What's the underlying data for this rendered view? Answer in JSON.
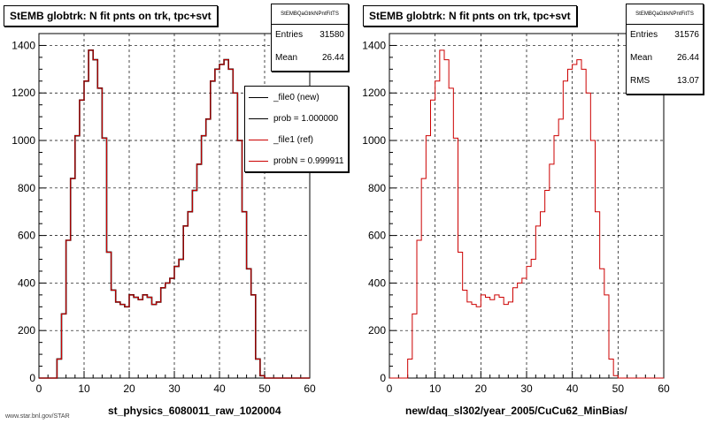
{
  "chart_data": [
    {
      "type": "histogram",
      "title": "StEMB globtrk: N fit pnts on trk, tpc+svt",
      "xlabel": "st_physics_6080011_raw_1020004",
      "ylabel": "",
      "xlim": [
        0,
        60
      ],
      "ylim": [
        0,
        1450
      ],
      "xticks": [
        "0",
        "10",
        "20",
        "30",
        "40",
        "50",
        "60"
      ],
      "yticks": [
        "0",
        "200",
        "400",
        "600",
        "800",
        "1000",
        "1200",
        "1400"
      ],
      "grid": true,
      "stats": {
        "header": "StEMBQaGtrkNPntFitTS",
        "rows": [
          {
            "label": "Entries",
            "value": "31580"
          },
          {
            "label": "Mean",
            "value": "26.44"
          }
        ]
      },
      "legend": {
        "placement": "top-right",
        "entries": [
          {
            "label": "_file0 (new)",
            "color": "#000000"
          },
          {
            "label": "prob = 1.000000",
            "color": "#000000"
          },
          {
            "label": "_file1 (ref)",
            "color": "#cc0000"
          },
          {
            "label": "probN = 0.999911",
            "color": "#cc0000"
          }
        ]
      },
      "bins": {
        "start": 0,
        "width": 1
      },
      "series": [
        {
          "name": "_file0 (new)",
          "color": "#000000",
          "values": [
            0,
            0,
            0,
            0,
            80,
            270,
            580,
            840,
            1020,
            1170,
            1250,
            1380,
            1340,
            1220,
            1010,
            530,
            370,
            320,
            310,
            300,
            350,
            340,
            330,
            350,
            340,
            310,
            320,
            380,
            400,
            420,
            470,
            500,
            640,
            700,
            790,
            900,
            1020,
            1090,
            1250,
            1300,
            1320,
            1340,
            1300,
            1200,
            1000,
            700,
            460,
            350,
            80,
            10,
            0,
            0,
            0,
            0,
            0,
            0,
            0,
            0,
            0,
            0
          ]
        },
        {
          "name": "_file1 (ref)",
          "color": "#cc0000",
          "values": [
            0,
            0,
            0,
            0,
            80,
            270,
            580,
            840,
            1020,
            1170,
            1250,
            1380,
            1340,
            1220,
            1010,
            530,
            370,
            320,
            310,
            300,
            350,
            340,
            330,
            350,
            340,
            310,
            320,
            380,
            400,
            420,
            470,
            500,
            640,
            700,
            790,
            900,
            1020,
            1090,
            1250,
            1300,
            1320,
            1340,
            1300,
            1200,
            1000,
            700,
            460,
            350,
            80,
            10,
            0,
            0,
            0,
            0,
            0,
            0,
            0,
            0,
            0,
            0
          ]
        }
      ]
    },
    {
      "type": "histogram",
      "title": "StEMB globtrk: N fit pnts on trk, tpc+svt",
      "xlabel": "new/daq_sl302/year_2005/CuCu62_MinBias/",
      "ylabel": "",
      "xlim": [
        0,
        60
      ],
      "ylim": [
        0,
        1450
      ],
      "xticks": [
        "0",
        "10",
        "20",
        "30",
        "40",
        "50",
        "60"
      ],
      "yticks": [
        "0",
        "200",
        "400",
        "600",
        "800",
        "1000",
        "1200",
        "1400"
      ],
      "grid": true,
      "stats": {
        "header": "StEMBQaGtrkNPntFitTS",
        "rows": [
          {
            "label": "Entries",
            "value": "31576"
          },
          {
            "label": "Mean",
            "value": "26.44"
          },
          {
            "label": "RMS",
            "value": "13.07"
          }
        ]
      },
      "bins": {
        "start": 0,
        "width": 1
      },
      "series": [
        {
          "name": "",
          "color": "#cc0000",
          "values": [
            0,
            0,
            0,
            0,
            80,
            270,
            580,
            840,
            1020,
            1170,
            1250,
            1380,
            1340,
            1220,
            1010,
            530,
            370,
            320,
            310,
            300,
            350,
            340,
            330,
            350,
            340,
            310,
            320,
            380,
            400,
            420,
            470,
            500,
            640,
            700,
            790,
            900,
            1020,
            1090,
            1250,
            1300,
            1320,
            1340,
            1300,
            1200,
            1000,
            700,
            460,
            350,
            80,
            10,
            0,
            0,
            0,
            0,
            0,
            0,
            0,
            0,
            0,
            0
          ]
        }
      ]
    }
  ],
  "footer": "www.star.bnl.gov/STAR"
}
